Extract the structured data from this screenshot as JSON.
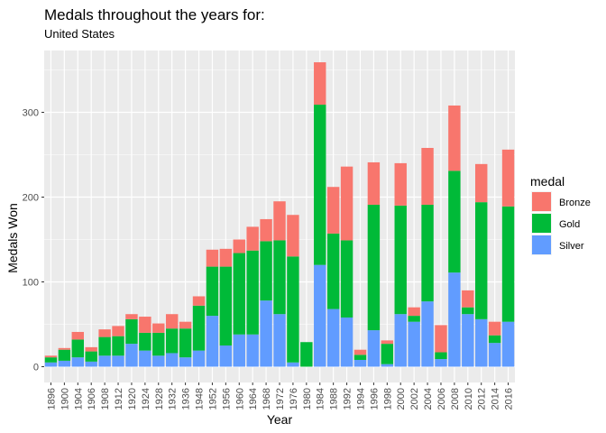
{
  "chart_data": {
    "type": "bar",
    "stacked": true,
    "title": "Medals throughout the years for:",
    "subtitle": "United States",
    "xlabel": "Year",
    "ylabel": "Medals Won",
    "ylim": [
      0,
      360
    ],
    "yticks": [
      0,
      100,
      200,
      300
    ],
    "grid": true,
    "legend_title": "medal",
    "legend_position": "right",
    "categories": [
      "1896",
      "1900",
      "1904",
      "1906",
      "1908",
      "1912",
      "1920",
      "1924",
      "1928",
      "1932",
      "1936",
      "1948",
      "1952",
      "1956",
      "1960",
      "1964",
      "1968",
      "1972",
      "1976",
      "1980",
      "1984",
      "1988",
      "1992",
      "1994",
      "1996",
      "1998",
      "2000",
      "2002",
      "2004",
      "2006",
      "2008",
      "2010",
      "2012",
      "2014",
      "2016"
    ],
    "series": [
      {
        "name": "Silver",
        "color": "#619CFF",
        "values": [
          5,
          7,
          11,
          6,
          13,
          13,
          27,
          19,
          13,
          16,
          11,
          19,
          60,
          25,
          38,
          38,
          78,
          62,
          5,
          0,
          120,
          68,
          58,
          8,
          43,
          3,
          62,
          53,
          77,
          9,
          111,
          62,
          56,
          28,
          53
        ]
      },
      {
        "name": "Gold",
        "color": "#00BA38",
        "values": [
          6,
          13,
          21,
          12,
          22,
          23,
          29,
          21,
          27,
          29,
          34,
          53,
          58,
          93,
          96,
          99,
          70,
          87,
          125,
          29,
          189,
          89,
          91,
          6,
          148,
          24,
          128,
          7,
          114,
          8,
          120,
          8,
          138,
          9,
          136
        ]
      },
      {
        "name": "Bronze",
        "color": "#F8766D",
        "values": [
          2,
          2,
          9,
          5,
          9,
          12,
          6,
          19,
          11,
          17,
          8,
          11,
          20,
          21,
          16,
          28,
          26,
          46,
          49,
          0,
          50,
          55,
          87,
          6,
          50,
          4,
          50,
          10,
          67,
          32,
          77,
          20,
          45,
          16,
          67
        ]
      }
    ],
    "legend_order": [
      "Bronze",
      "Gold",
      "Silver"
    ]
  }
}
